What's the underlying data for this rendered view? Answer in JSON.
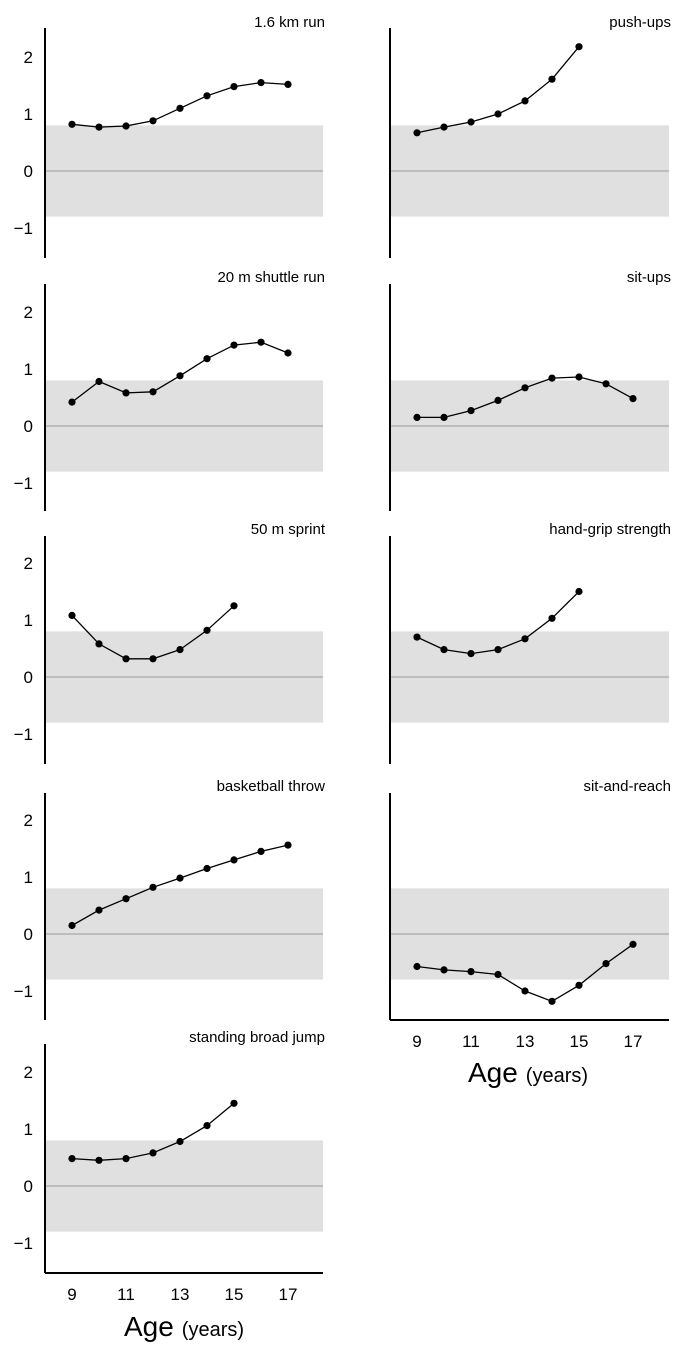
{
  "x_axis": {
    "label": "Age",
    "unit": "(years)",
    "ticks": [
      "9",
      "11",
      "13",
      "15",
      "17"
    ]
  },
  "chart_data": [
    {
      "type": "line",
      "title": "1.6 km run",
      "x": [
        9,
        10,
        11,
        12,
        13,
        14,
        15,
        16,
        17
      ],
      "y": [
        0.82,
        0.77,
        0.79,
        0.88,
        1.1,
        1.32,
        1.48,
        1.55,
        1.52
      ],
      "ylim": [
        -1.4,
        2.5
      ],
      "yticks": [
        "2",
        "1",
        "0",
        "−1"
      ],
      "reference_band": [
        -0.8,
        0.8
      ],
      "position": "left column, row 1"
    },
    {
      "type": "line",
      "title": "push-ups",
      "x": [
        9,
        10,
        11,
        12,
        13,
        14,
        15
      ],
      "y": [
        0.67,
        0.77,
        0.86,
        1.0,
        1.23,
        1.61,
        2.18
      ],
      "ylim": [
        -1.4,
        2.5
      ],
      "yticks": [],
      "reference_band": [
        -0.8,
        0.8
      ],
      "position": "right column, row 1"
    },
    {
      "type": "line",
      "title": "20 m shuttle run",
      "x": [
        9,
        10,
        11,
        12,
        13,
        14,
        15,
        16,
        17
      ],
      "y": [
        0.42,
        0.78,
        0.58,
        0.6,
        0.88,
        1.18,
        1.42,
        1.47,
        1.28
      ],
      "ylim": [
        -1.4,
        2.5
      ],
      "yticks": [
        "2",
        "1",
        "0",
        "−1"
      ],
      "reference_band": [
        -0.8,
        0.8
      ],
      "position": "left column, row 2"
    },
    {
      "type": "line",
      "title": "sit-ups",
      "x": [
        9,
        10,
        11,
        12,
        13,
        14,
        15,
        16,
        17
      ],
      "y": [
        0.15,
        0.15,
        0.27,
        0.45,
        0.67,
        0.84,
        0.86,
        0.74,
        0.48
      ],
      "ylim": [
        -1.4,
        2.5
      ],
      "yticks": [],
      "reference_band": [
        -0.8,
        0.8
      ],
      "position": "right column, row 2"
    },
    {
      "type": "line",
      "title": "50 m sprint",
      "x": [
        9,
        10,
        11,
        12,
        13,
        14,
        15
      ],
      "y": [
        1.08,
        0.58,
        0.32,
        0.32,
        0.48,
        0.82,
        1.25
      ],
      "ylim": [
        -1.4,
        2.5
      ],
      "yticks": [
        "2",
        "1",
        "0",
        "−1"
      ],
      "reference_band": [
        -0.8,
        0.8
      ],
      "position": "left column, row 3"
    },
    {
      "type": "line",
      "title": "hand-grip strength",
      "x": [
        9,
        10,
        11,
        12,
        13,
        14,
        15
      ],
      "y": [
        0.7,
        0.48,
        0.41,
        0.48,
        0.67,
        1.03,
        1.5
      ],
      "ylim": [
        -1.4,
        2.5
      ],
      "yticks": [],
      "reference_band": [
        -0.8,
        0.8
      ],
      "position": "right column, row 3"
    },
    {
      "type": "line",
      "title": "basketball throw",
      "x": [
        9,
        10,
        11,
        12,
        13,
        14,
        15,
        16,
        17
      ],
      "y": [
        0.15,
        0.42,
        0.62,
        0.82,
        0.98,
        1.15,
        1.3,
        1.45,
        1.56
      ],
      "ylim": [
        -1.4,
        2.5
      ],
      "yticks": [
        "2",
        "1",
        "0",
        "−1"
      ],
      "reference_band": [
        -0.8,
        0.8
      ],
      "position": "left column, row 4"
    },
    {
      "type": "line",
      "title": "sit-and-reach",
      "x": [
        9,
        10,
        11,
        12,
        13,
        14,
        15,
        16,
        17
      ],
      "y": [
        -0.57,
        -0.63,
        -0.66,
        -0.71,
        -1.0,
        -1.18,
        -0.9,
        -0.52,
        -0.18
      ],
      "ylim": [
        -1.4,
        2.5
      ],
      "yticks": [],
      "reference_band": [
        -0.8,
        0.8
      ],
      "position": "right column, row 4"
    },
    {
      "type": "line",
      "title": "standing broad jump",
      "x": [
        9,
        10,
        11,
        12,
        13,
        14,
        15
      ],
      "y": [
        0.48,
        0.45,
        0.48,
        0.58,
        0.78,
        1.06,
        1.45
      ],
      "ylim": [
        -1.4,
        2.5
      ],
      "yticks": [
        "2",
        "1",
        "0",
        "−1"
      ],
      "reference_band": [
        -0.8,
        0.8
      ],
      "position": "left column, row 5"
    }
  ]
}
